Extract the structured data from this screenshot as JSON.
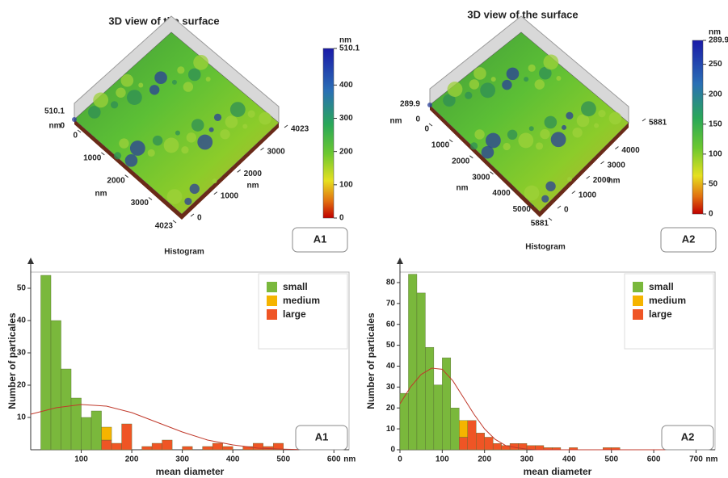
{
  "surfaces": [
    {
      "title": "3D view of the surface",
      "zticks": [
        0,
        510.1
      ],
      "z_unit": "nm",
      "xticks": [
        0,
        1000,
        2000,
        3000,
        4023
      ],
      "x_unit": "nm",
      "yticks": [
        0,
        1000,
        2000,
        3000,
        4023
      ],
      "y_unit": "nm",
      "colorbar": {
        "unit": "nm",
        "lim": [
          0,
          510.1
        ],
        "ticks": [
          0,
          100,
          200,
          300,
          400,
          510.1
        ]
      },
      "caption": "Histogram",
      "panel_label": "A1"
    },
    {
      "title": "3D view of the surface",
      "zticks": [
        0,
        289.9
      ],
      "z_unit": "nm",
      "xticks": [
        0,
        1000,
        2000,
        3000,
        4000,
        5000,
        5881
      ],
      "x_unit": "nm",
      "yticks": [
        0,
        1000,
        2000,
        3000,
        4000,
        5881
      ],
      "y_unit": "nm",
      "colorbar": {
        "unit": "nm",
        "lim": [
          0,
          289.9
        ],
        "ticks": [
          0,
          50,
          100,
          150,
          200,
          250,
          289.9
        ]
      },
      "caption": "Histogram",
      "panel_label": "A2"
    }
  ],
  "chart_data": [
    {
      "type": "histogram",
      "ylabel": "Number of particales",
      "xlabel": "mean diameter",
      "x_unit": "nm",
      "panel_label": "A1",
      "legend": "upper right",
      "bins": [
        20,
        40,
        60,
        80,
        100,
        120,
        140,
        160,
        180,
        200,
        220,
        240,
        260,
        280,
        300,
        320,
        340,
        360,
        380,
        400,
        420,
        440,
        460,
        480,
        500
      ],
      "series": [
        {
          "name": "small",
          "color": "#7ab83c",
          "values": [
            54,
            40,
            25,
            16,
            10,
            12,
            0,
            0,
            0,
            0,
            0,
            0,
            0,
            0,
            0,
            0,
            0,
            0,
            0,
            0,
            0,
            0,
            0,
            0
          ]
        },
        {
          "name": "medium",
          "color": "#f5b400",
          "values": [
            0,
            0,
            0,
            0,
            0,
            0,
            4,
            0,
            0,
            0,
            0,
            0,
            0,
            0,
            0,
            0,
            0,
            0,
            0,
            0,
            0,
            0,
            0,
            0
          ]
        },
        {
          "name": "large",
          "color": "#ef5525",
          "values": [
            0,
            0,
            0,
            0,
            0,
            0,
            3,
            2,
            8,
            0,
            1,
            2,
            3,
            0,
            1,
            0,
            1,
            2,
            1,
            0,
            1,
            2,
            1,
            2
          ]
        }
      ],
      "fit": {
        "color": "#c0392b",
        "x": [
          0,
          50,
          100,
          150,
          200,
          250,
          300,
          350,
          400,
          450,
          500,
          550,
          600
        ],
        "values": [
          11,
          13,
          14,
          13.5,
          11.5,
          8.5,
          5.5,
          3,
          1.5,
          0.5,
          0.2,
          0,
          0
        ]
      },
      "xlim": [
        0,
        630
      ],
      "xticks": [
        100,
        200,
        300,
        400,
        500,
        600
      ],
      "ylim": [
        0,
        55
      ],
      "yticks": [
        10,
        20,
        30,
        40,
        50
      ]
    },
    {
      "type": "histogram",
      "ylabel": "Number of particales",
      "xlabel": "mean diameter",
      "x_unit": "nm",
      "panel_label": "A2",
      "legend": "upper right",
      "bins": [
        0,
        20,
        40,
        60,
        80,
        100,
        120,
        140,
        160,
        180,
        200,
        220,
        240,
        260,
        280,
        300,
        320,
        340,
        360,
        380,
        400,
        420,
        440,
        460,
        480,
        500,
        520
      ],
      "series": [
        {
          "name": "small",
          "color": "#7ab83c",
          "values": [
            27,
            84,
            75,
            49,
            31,
            44,
            20,
            0,
            0,
            0,
            0,
            0,
            0,
            0,
            0,
            0,
            0,
            0,
            0,
            0,
            0,
            0,
            0,
            0,
            0,
            0
          ]
        },
        {
          "name": "medium",
          "color": "#f5b400",
          "values": [
            0,
            0,
            0,
            0,
            0,
            0,
            0,
            8,
            0,
            0,
            0,
            0,
            0,
            0,
            0,
            0,
            0,
            0,
            0,
            0,
            0,
            0,
            0,
            0,
            0,
            0
          ]
        },
        {
          "name": "large",
          "color": "#ef5525",
          "values": [
            0,
            0,
            0,
            0,
            0,
            0,
            0,
            6,
            14,
            8,
            6,
            3,
            2,
            3,
            3,
            2,
            2,
            1,
            1,
            0,
            1,
            0,
            0,
            0,
            1,
            1
          ]
        }
      ],
      "fit": {
        "color": "#c0392b",
        "x": [
          0,
          25,
          50,
          75,
          100,
          125,
          150,
          175,
          200,
          225,
          250,
          275,
          300,
          325,
          700
        ],
        "values": [
          22,
          30,
          36,
          39,
          38.5,
          33,
          25,
          17,
          10,
          5,
          2,
          1,
          0.3,
          0,
          0
        ]
      },
      "xlim": [
        0,
        745
      ],
      "xticks": [
        0,
        100,
        200,
        300,
        400,
        500,
        600,
        700
      ],
      "ylim": [
        0,
        85
      ],
      "yticks": [
        0,
        10,
        20,
        30,
        40,
        50,
        60,
        70,
        80
      ]
    }
  ]
}
